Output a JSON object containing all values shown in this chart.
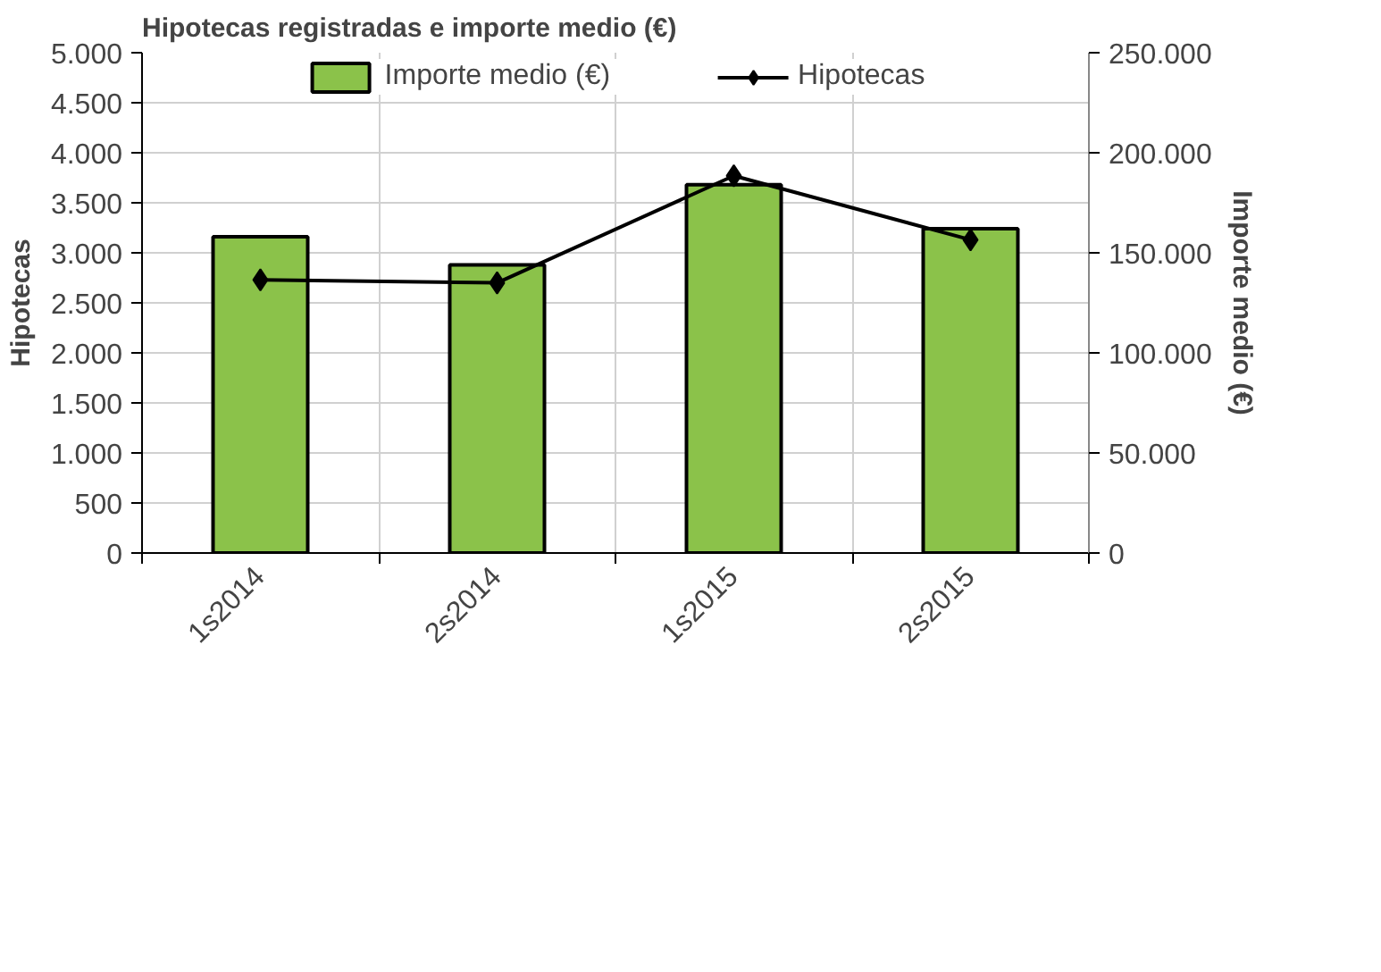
{
  "chart_data": {
    "type": "bar",
    "title": "Hipotecas registradas e importe medio (€)",
    "categories": [
      "1s2014",
      "2s2014",
      "1s2015",
      "2s2015"
    ],
    "ylabel": "Hipotecas",
    "y2label": "Importe medio (€)",
    "series": [
      {
        "name": "Importe medio (€)",
        "axis": "y2",
        "color": "#8bc24a",
        "values": [
          158000,
          144000,
          184000,
          162000
        ]
      },
      {
        "name": "Hipotecas",
        "type": "line",
        "color": "#000000",
        "marker": "diamond",
        "values": [
          2730,
          2700,
          3770,
          3130
        ]
      }
    ],
    "ylim": [
      0,
      5000
    ],
    "yticks": [
      0,
      500,
      {
        "value": 1000,
        "label": "1.000"
      },
      {
        "value": 1500,
        "label": "1.500"
      },
      {
        "value": 2000,
        "label": "2.000"
      },
      {
        "value": 2500,
        "label": "2.500"
      },
      {
        "value": 3000,
        "label": "3.000"
      },
      {
        "value": 3500,
        "label": "3.500"
      },
      {
        "value": 4000,
        "label": "4.000"
      },
      {
        "value": 4500,
        "label": "4.500"
      },
      {
        "value": 5000,
        "label": "5.000"
      }
    ],
    "y2lim": [
      0,
      250000
    ],
    "y2ticks": [
      0,
      {
        "value": 50000,
        "label": "50.000"
      },
      {
        "value": 100000,
        "label": "100.000"
      },
      {
        "value": 150000,
        "label": "150.000"
      },
      {
        "value": 200000,
        "label": "200.000"
      },
      {
        "value": 250000,
        "label": "250.000"
      }
    ],
    "grid": true,
    "legend": "top"
  }
}
